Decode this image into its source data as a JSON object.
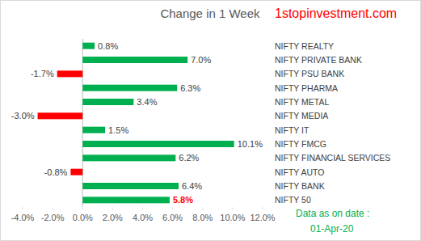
{
  "chart_data": {
    "type": "bar",
    "orientation": "horizontal",
    "title": "Change in 1 Week",
    "categories": [
      "NIFTY REALTY",
      "NIFTY PRIVATE BANK",
      "NIFTY PSU BANK",
      "NIFTY PHARMA",
      "NIFTY METAL",
      "NIFTY MEDIA",
      "NIFTY IT",
      "NIFTY FMCG",
      "NIFTY FINANCIAL SERVICES",
      "NIFTY AUTO",
      "NIFTY BANK",
      "NIFTY 50"
    ],
    "values": [
      0.8,
      7.0,
      -1.7,
      6.3,
      3.4,
      -3.0,
      1.5,
      10.1,
      6.2,
      -0.8,
      6.4,
      5.8
    ],
    "value_labels": [
      "0.8%",
      "7.0%",
      "-1.7%",
      "6.3%",
      "3.4%",
      "-3.0%",
      "1.5%",
      "10.1%",
      "6.2%",
      "-0.8%",
      "6.4%",
      "5.8%"
    ],
    "colors": [
      "#00b050",
      "#00b050",
      "#ff0000",
      "#00b050",
      "#00b050",
      "#ff0000",
      "#00b050",
      "#00b050",
      "#00b050",
      "#ff0000",
      "#00b050",
      "#00b050"
    ],
    "xlim": [
      -4,
      12
    ],
    "xticks": [
      {
        "value": -4,
        "label": "-4.0%"
      },
      {
        "value": -2,
        "label": "-2.0%"
      },
      {
        "value": 0,
        "label": "0.0%"
      },
      {
        "value": 2,
        "label": "2.0%"
      },
      {
        "value": 4,
        "label": "4.0%"
      },
      {
        "value": 6,
        "label": "6.0%"
      },
      {
        "value": 8,
        "label": "8.0%"
      },
      {
        "value": 10,
        "label": "10.0%"
      },
      {
        "value": 12,
        "label": "12.0%"
      }
    ],
    "grid": false,
    "data_labels": true,
    "annotations": [
      "1stopinvestment.com",
      "Data as on date :",
      "01-Apr-20"
    ]
  }
}
